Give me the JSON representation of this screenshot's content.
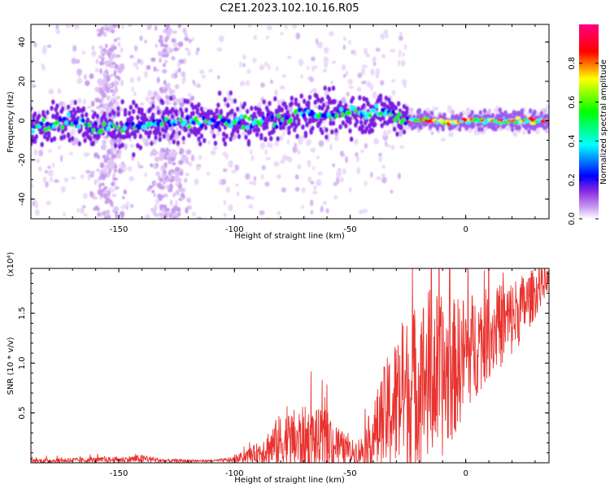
{
  "chart_data": [
    {
      "type": "heatmap",
      "title": "C2E1.2023.102.10.16.R05",
      "xlabel": "Height of straight line (km)",
      "ylabel": "Frequency (Hz)",
      "xlim": [
        -188,
        36
      ],
      "ylim": [
        -50,
        49
      ],
      "x_ticks": [
        -150,
        -100,
        -50,
        0
      ],
      "y_ticks": [
        -40,
        -20,
        0,
        20,
        40
      ],
      "colorbar": {
        "label": "Normalized spectral amplitude",
        "range": [
          0.0,
          1.0
        ],
        "ticks": [
          "0.0",
          "0.2",
          "0.4",
          "0.6",
          "0.8"
        ],
        "colors": [
          "#ffffff",
          "#a020f0",
          "#0000ff",
          "#00ffff",
          "#00ff00",
          "#ffff00",
          "#ff0000",
          "#ff0080"
        ]
      },
      "ridge": {
        "x": [
          -185,
          -170,
          -160,
          -150,
          -140,
          -130,
          -120,
          -110,
          -100,
          -90,
          -80,
          -70,
          -60,
          -50,
          -45,
          -40,
          -35,
          -30,
          -25,
          -20,
          -15,
          -10,
          -5,
          0,
          10,
          20,
          30,
          36
        ],
        "freq": [
          -3,
          0,
          -4,
          -3,
          -2,
          -1,
          -1,
          0,
          -1,
          -1,
          1,
          4,
          3,
          4,
          3,
          4,
          5,
          3,
          1,
          0,
          0,
          -1,
          -1,
          0,
          0,
          0,
          0,
          0
        ]
      },
      "vertical_bands_x": [
        -155,
        -128
      ],
      "grid": false
    },
    {
      "type": "line",
      "xlabel": "Height of straight line (km)",
      "ylabel": "SNR (10 * v/v)",
      "multiplier_label": "(x10⁴)",
      "xlim": [
        -188,
        36
      ],
      "ylim": [
        0,
        1.95
      ],
      "x_ticks": [
        -150,
        -100,
        -50,
        0
      ],
      "y_ticks": [
        "0.5",
        "1.0",
        "1.5"
      ],
      "color": "#e8332f",
      "envelope": {
        "x": [
          -188,
          -150,
          -140,
          -130,
          -110,
          -100,
          -90,
          -80,
          -70,
          -60,
          -50,
          -45,
          -40,
          -35,
          -30,
          -25,
          -20,
          -15,
          -10,
          -5,
          0,
          10,
          20,
          30,
          36
        ],
        "mean": [
          0.02,
          0.03,
          0.04,
          0.02,
          0.02,
          0.03,
          0.1,
          0.2,
          0.22,
          0.22,
          0.1,
          0.12,
          0.25,
          0.45,
          0.6,
          0.7,
          0.8,
          0.9,
          0.85,
          0.95,
          1.1,
          1.3,
          1.45,
          1.7,
          1.85
        ],
        "amplitude": [
          0.02,
          0.03,
          0.04,
          0.02,
          0.01,
          0.03,
          0.1,
          0.3,
          0.35,
          0.3,
          0.12,
          0.15,
          0.35,
          0.55,
          0.7,
          0.8,
          0.85,
          0.9,
          0.8,
          0.7,
          0.6,
          0.45,
          0.4,
          0.25,
          0.1
        ]
      },
      "grid": false
    }
  ]
}
